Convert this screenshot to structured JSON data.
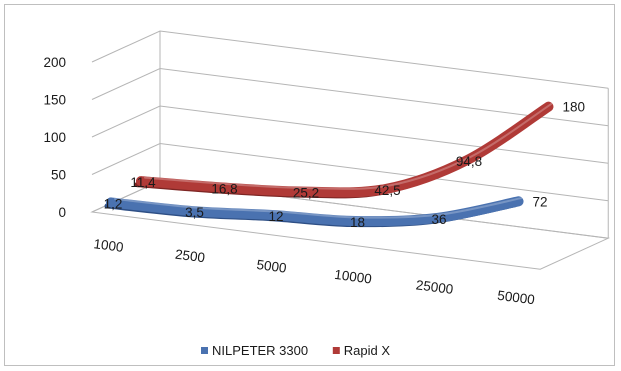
{
  "chart_data": {
    "type": "line",
    "title": "",
    "xlabel": "",
    "ylabel": "",
    "ylim": [
      0,
      200
    ],
    "y_ticks": [
      "0",
      "50",
      "100",
      "150",
      "200"
    ],
    "categories": [
      "1000",
      "2500",
      "5000",
      "10000",
      "25000",
      "50000"
    ],
    "grid": true,
    "legend_position": "bottom",
    "series": [
      {
        "name": "NILPETER 3300",
        "color": "#4a72b0",
        "values": [
          1.2,
          3.5,
          12,
          18,
          36,
          72
        ],
        "labels": [
          "1,2",
          "3,5",
          "12",
          "18",
          "36",
          "72"
        ]
      },
      {
        "name": "Rapid X",
        "color": "#b03a37",
        "values": [
          11.4,
          16.8,
          25.2,
          42.5,
          94.8,
          180
        ],
        "labels": [
          "11,4",
          "16,8",
          "25,2",
          "42,5",
          "94,8",
          "180"
        ]
      }
    ]
  }
}
